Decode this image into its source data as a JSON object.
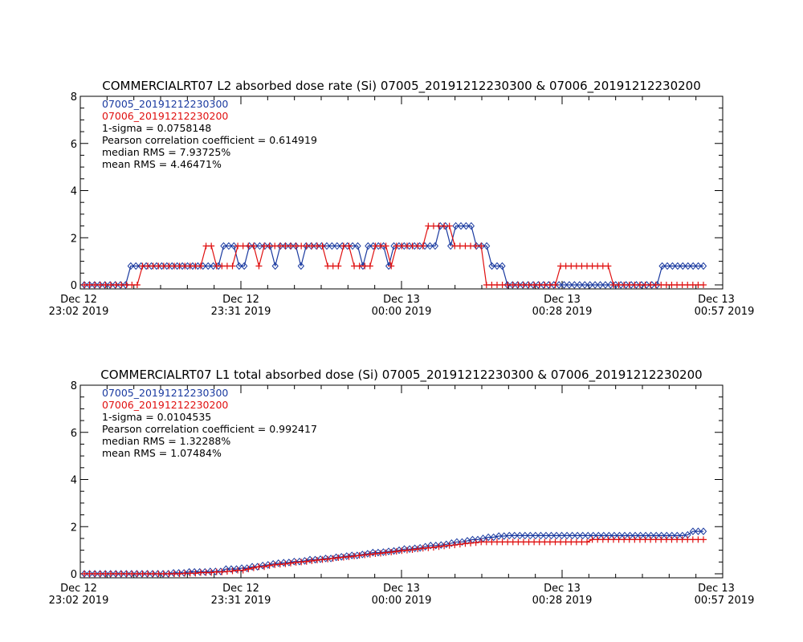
{
  "chart_data": [
    {
      "type": "line",
      "title": "COMMERCIALRT07 L2 absorbed dose rate (Si) 07005_20191212230300 & 07006_20191212230200",
      "ylim": [
        0,
        8
      ],
      "y_ticks": [
        "0",
        "2",
        "4",
        "6",
        "8"
      ],
      "x_ticks": [
        {
          "line1": "Dec 12",
          "line2": "23:02 2019"
        },
        {
          "line1": "Dec 12",
          "line2": "23:31 2019"
        },
        {
          "line1": "Dec 13",
          "line2": "00:00 2019"
        },
        {
          "line1": "Dec 13",
          "line2": "00:28 2019"
        },
        {
          "line1": "Dec 13",
          "line2": "00:57 2019"
        }
      ],
      "annotations": [
        "1-sigma = 0.0758148",
        "Pearson correlation coefficient = 0.614919",
        "median RMS = 7.93725%",
        "mean RMS = 4.46471%"
      ],
      "series": [
        {
          "name": "07005_20191212230300",
          "color": "#1a3aa0",
          "marker": "diamond",
          "values": [
            0,
            0,
            0,
            0,
            0,
            0,
            0,
            0,
            0,
            0.8,
            0.8,
            0.8,
            0.8,
            0.8,
            0.8,
            0.8,
            0.8,
            0.8,
            0.8,
            0.8,
            0.8,
            0.8,
            0.8,
            0.8,
            0.8,
            0.8,
            0.8,
            1.65,
            1.65,
            1.65,
            0.8,
            0.8,
            1.65,
            1.65,
            1.65,
            1.65,
            1.65,
            0.8,
            1.65,
            1.65,
            1.65,
            1.65,
            0.8,
            1.65,
            1.65,
            1.65,
            1.65,
            1.65,
            1.65,
            1.65,
            1.65,
            1.65,
            1.65,
            1.65,
            0.8,
            1.65,
            1.65,
            1.65,
            1.65,
            0.8,
            1.65,
            1.65,
            1.65,
            1.65,
            1.65,
            1.65,
            1.65,
            1.65,
            1.65,
            2.5,
            2.5,
            1.65,
            2.5,
            2.5,
            2.5,
            2.5,
            1.65,
            1.65,
            1.65,
            0.8,
            0.8,
            0.8,
            0,
            0,
            0,
            0,
            0,
            0,
            0,
            0,
            0,
            0,
            0,
            0,
            0,
            0,
            0,
            0,
            0,
            0,
            0,
            0,
            0,
            0,
            0,
            0,
            0,
            0,
            0,
            0,
            0,
            0,
            0.8,
            0.8,
            0.8,
            0.8,
            0.8,
            0.8,
            0.8,
            0.8,
            0.8
          ]
        },
        {
          "name": "07006_20191212230200",
          "color": "#e01010",
          "marker": "plus",
          "values": [
            0,
            0,
            0,
            0,
            0,
            0,
            0,
            0,
            0,
            0,
            0,
            0.8,
            0.8,
            0.8,
            0.8,
            0.8,
            0.8,
            0.8,
            0.8,
            0.8,
            0.8,
            0.8,
            0.8,
            1.65,
            1.65,
            0.8,
            0.8,
            0.8,
            0.8,
            1.65,
            1.65,
            1.65,
            1.65,
            0.8,
            1.65,
            1.65,
            1.65,
            1.65,
            1.65,
            1.65,
            1.65,
            1.65,
            1.65,
            1.65,
            1.65,
            1.65,
            0.8,
            0.8,
            0.8,
            1.65,
            1.65,
            0.8,
            0.8,
            0.8,
            0.8,
            1.65,
            1.65,
            1.65,
            0.8,
            1.65,
            1.65,
            1.65,
            1.65,
            1.65,
            1.65,
            2.5,
            2.5,
            2.5,
            2.5,
            2.5,
            1.65,
            1.65,
            1.65,
            1.65,
            1.65,
            1.65,
            0,
            0,
            0,
            0,
            0,
            0,
            0,
            0,
            0,
            0,
            0,
            0,
            0,
            0,
            0.8,
            0.8,
            0.8,
            0.8,
            0.8,
            0.8,
            0.8,
            0.8,
            0.8,
            0.8,
            0,
            0,
            0,
            0,
            0,
            0,
            0,
            0,
            0,
            0,
            0,
            0,
            0,
            0,
            0,
            0,
            0,
            0
          ]
        }
      ]
    },
    {
      "type": "line",
      "title": "COMMERCIALRT07 L1 total absorbed dose (Si) 07005_20191212230300 & 07006_20191212230200",
      "ylim": [
        0,
        8
      ],
      "y_ticks": [
        "0",
        "2",
        "4",
        "6",
        "8"
      ],
      "x_ticks": [
        {
          "line1": "Dec 12",
          "line2": "23:02 2019"
        },
        {
          "line1": "Dec 12",
          "line2": "23:31 2019"
        },
        {
          "line1": "Dec 13",
          "line2": "00:00 2019"
        },
        {
          "line1": "Dec 13",
          "line2": "00:28 2019"
        },
        {
          "line1": "Dec 13",
          "line2": "00:57 2019"
        }
      ],
      "annotations": [
        "1-sigma = 0.0104535",
        "Pearson correlation coefficient = 0.992417",
        "median RMS = 1.32288%",
        "mean RMS = 1.07484%"
      ],
      "series": [
        {
          "name": "07005_20191212230300",
          "color": "#1a3aa0",
          "marker": "diamond",
          "values": [
            0,
            0,
            0,
            0,
            0,
            0,
            0,
            0,
            0,
            0,
            0,
            0,
            0,
            0,
            0,
            0,
            0,
            0.04,
            0.04,
            0.04,
            0.08,
            0.08,
            0.08,
            0.08,
            0.1,
            0.1,
            0.1,
            0.2,
            0.2,
            0.2,
            0.24,
            0.24,
            0.3,
            0.3,
            0.35,
            0.38,
            0.42,
            0.45,
            0.47,
            0.48,
            0.52,
            0.52,
            0.55,
            0.6,
            0.6,
            0.62,
            0.65,
            0.65,
            0.7,
            0.72,
            0.75,
            0.78,
            0.78,
            0.82,
            0.85,
            0.9,
            0.9,
            0.92,
            0.95,
            0.97,
            1.0,
            1.05,
            1.05,
            1.08,
            1.1,
            1.15,
            1.2,
            1.2,
            1.22,
            1.25,
            1.3,
            1.35,
            1.35,
            1.4,
            1.45,
            1.45,
            1.5,
            1.55,
            1.55,
            1.6,
            1.6,
            1.62,
            1.62,
            1.62,
            1.62,
            1.62,
            1.62,
            1.62,
            1.62,
            1.62,
            1.62,
            1.62,
            1.62,
            1.62,
            1.62,
            1.62,
            1.62,
            1.62,
            1.62,
            1.62,
            1.62,
            1.62,
            1.62,
            1.62,
            1.62,
            1.62,
            1.62,
            1.62,
            1.62,
            1.62,
            1.62,
            1.62,
            1.62,
            1.62,
            1.62,
            1.65,
            1.8,
            1.8,
            1.8
          ]
        },
        {
          "name": "07006_20191212230200",
          "color": "#e01010",
          "marker": "plus",
          "values": [
            0,
            0,
            0,
            0,
            0,
            0,
            0,
            0,
            0,
            0,
            0,
            0,
            0,
            0,
            0,
            0,
            0,
            0,
            0,
            0.02,
            0.02,
            0.02,
            0.05,
            0.05,
            0.05,
            0.08,
            0.08,
            0.1,
            0.12,
            0.15,
            0.15,
            0.2,
            0.25,
            0.3,
            0.3,
            0.35,
            0.38,
            0.4,
            0.42,
            0.45,
            0.48,
            0.5,
            0.52,
            0.55,
            0.58,
            0.6,
            0.62,
            0.65,
            0.68,
            0.7,
            0.72,
            0.75,
            0.78,
            0.8,
            0.82,
            0.85,
            0.87,
            0.9,
            0.92,
            0.95,
            0.98,
            1.0,
            1.02,
            1.05,
            1.08,
            1.1,
            1.12,
            1.15,
            1.18,
            1.2,
            1.22,
            1.25,
            1.28,
            1.3,
            1.32,
            1.35,
            1.35,
            1.35,
            1.35,
            1.35,
            1.35,
            1.35,
            1.35,
            1.35,
            1.35,
            1.35,
            1.35,
            1.35,
            1.35,
            1.35,
            1.35,
            1.35,
            1.35,
            1.35,
            1.35,
            1.35,
            1.45,
            1.45,
            1.45,
            1.45,
            1.45,
            1.45,
            1.45,
            1.45,
            1.45,
            1.45,
            1.45,
            1.45,
            1.45,
            1.45,
            1.45,
            1.45,
            1.45,
            1.45,
            1.45,
            1.45,
            1.45,
            1.45
          ]
        }
      ]
    }
  ]
}
